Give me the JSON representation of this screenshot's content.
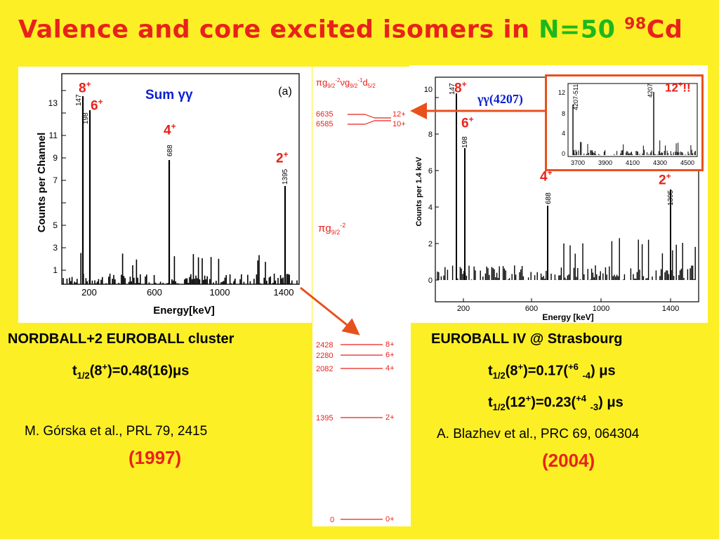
{
  "title": {
    "main": "Valence and core excited isomers in ",
    "green": "N=50",
    "sup": "98",
    "tail": "Cd"
  },
  "left_panel": {
    "panel_label": "(a)",
    "sum_label": "Sum γγ",
    "ylabel": "Counts per Channel",
    "xlabel": "Energy[keV]",
    "x_ticks": [
      "200",
      "600",
      "1000",
      "1400"
    ],
    "y_ticks": [
      "1",
      "3",
      "5",
      "7",
      "9",
      "11",
      "13"
    ],
    "peak_labels": [
      "147",
      "198",
      "688",
      "1395"
    ],
    "spin_labels": [
      "8+",
      "6+",
      "4+",
      "2+"
    ]
  },
  "right_panel": {
    "gg_label": "γγ(4207)",
    "ylabel": "Counts per 1.4 keV",
    "xlabel": "Energy [keV]",
    "x_ticks": [
      "200",
      "600",
      "1000",
      "1400"
    ],
    "y_ticks": [
      "0",
      "2",
      "4",
      "6",
      "8",
      "10"
    ],
    "peak_labels": [
      "147",
      "198",
      "688",
      "1395"
    ],
    "spin_labels": [
      "8+",
      "6+",
      "4+",
      "2+"
    ],
    "inset": {
      "x_ticks": [
        "3700",
        "3900",
        "4100",
        "4300",
        "4500"
      ],
      "y_ticks": [
        "0",
        "4",
        "8",
        "12"
      ],
      "peak_labels": [
        "4207-511",
        "4207"
      ],
      "spin_label": "12+!!"
    }
  },
  "level_scheme": {
    "top_config": "πg9/2-2νg9/2-1d5/2",
    "mid_config": "πg9/2-2",
    "levels": [
      {
        "energy": "6635",
        "spin": "12+"
      },
      {
        "energy": "6585",
        "spin": "10+"
      },
      {
        "energy": "2428",
        "spin": "8+"
      },
      {
        "energy": "2280",
        "spin": "6+"
      },
      {
        "energy": "2082",
        "spin": "4+"
      },
      {
        "energy": "1395",
        "spin": "2+"
      },
      {
        "energy": "0",
        "spin": "0+"
      }
    ]
  },
  "left_caption": {
    "setup": "NORDBALL+2 EUROBALL cluster",
    "halflife": "t1/2(8+)=0.48(16)μs",
    "ref": "M. Górska et al., PRL 79, 2415",
    "year": "(1997)"
  },
  "right_caption": {
    "setup": "EUROBALL IV @ Strasbourg",
    "halflife1": "t1/2(8+)=0.17(+6 -4) μs",
    "halflife2": "t1/2(12+)=0.23(+4 -3) μs",
    "ref": "A. Blazhev et al., PRC 69, 064304",
    "year": "(2004)"
  },
  "colors": {
    "background": "#FDEF26",
    "title_red": "#E8221A",
    "title_green": "#1DB81D",
    "arrow": "#E8501C"
  }
}
